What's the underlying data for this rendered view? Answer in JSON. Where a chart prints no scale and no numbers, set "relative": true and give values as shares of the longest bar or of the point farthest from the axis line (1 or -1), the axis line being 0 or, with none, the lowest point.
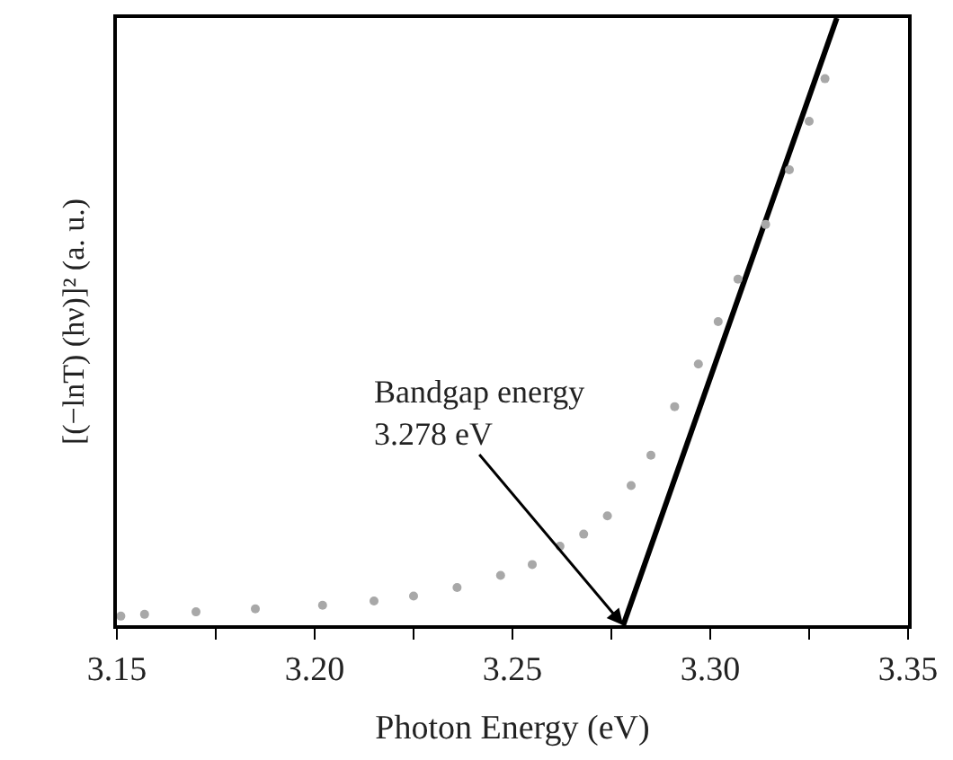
{
  "chart_data": {
    "type": "scatter",
    "relative": true,
    "xlabel": "Photon Energy (eV)",
    "ylabel": "[(−lnT) (hν)]² (a. u.)",
    "xlim": [
      3.15,
      3.35
    ],
    "xticks": [
      {
        "value": 3.15,
        "label": "3.15"
      },
      {
        "value": 3.175,
        "label": null
      },
      {
        "value": 3.2,
        "label": "3.20"
      },
      {
        "value": 3.225,
        "label": null
      },
      {
        "value": 3.25,
        "label": "3.25"
      },
      {
        "value": 3.275,
        "label": null
      },
      {
        "value": 3.3,
        "label": "3.30"
      },
      {
        "value": 3.325,
        "label": null
      },
      {
        "value": 3.35,
        "label": "3.35"
      }
    ],
    "tick_labels": "x",
    "series": [
      {
        "marker": "circle",
        "color": "#a8a8a8",
        "x": [
          3.151,
          3.157,
          3.17,
          3.185,
          3.202,
          3.215,
          3.225,
          3.236,
          3.247,
          3.255,
          3.262,
          3.268,
          3.274,
          3.28,
          3.285,
          3.291,
          3.297,
          3.302,
          3.307,
          3.314,
          3.32,
          3.325,
          3.329
        ],
        "values": [
          0.015,
          0.018,
          0.022,
          0.027,
          0.033,
          0.04,
          0.048,
          0.062,
          0.082,
          0.1,
          0.13,
          0.15,
          0.18,
          0.23,
          0.28,
          0.36,
          0.43,
          0.5,
          0.57,
          0.66,
          0.75,
          0.83,
          0.9
        ]
      },
      {
        "type": "line",
        "line_style": "solid",
        "marker": "none",
        "color": "#000000",
        "x": [
          3.278,
          3.332
        ],
        "values": [
          0,
          1
        ]
      }
    ],
    "annotations": [
      {
        "text": "Bandgap energy\n3.278 eV",
        "x": 3.278,
        "y": 0
      }
    ]
  }
}
